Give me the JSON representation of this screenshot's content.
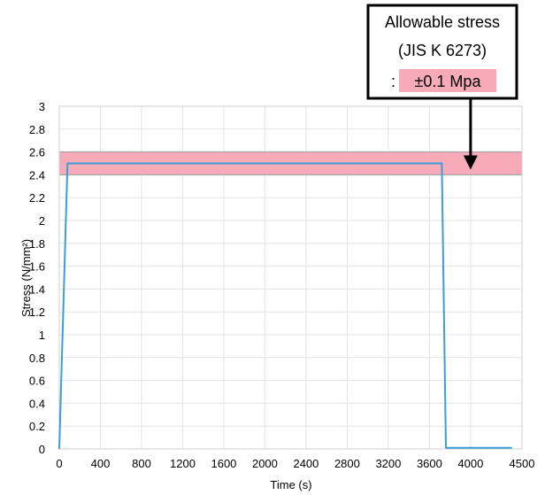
{
  "chart_data": {
    "type": "line",
    "xlabel": "Time (s)",
    "ylabel": "Stress (N/mm²)",
    "xlim": [
      0,
      4500
    ],
    "ylim": [
      0,
      3
    ],
    "x_ticks": [
      "0",
      "400",
      "800",
      "1200",
      "1600",
      "2000",
      "2400",
      "2800",
      "3200",
      "3600",
      "4000",
      "4500"
    ],
    "x_tick_values": [
      0,
      400,
      800,
      1200,
      1600,
      2000,
      2400,
      2800,
      3200,
      3600,
      4000,
      4500
    ],
    "y_ticks": [
      "0",
      "0.2",
      "0.4",
      "0.6",
      "0.8",
      "1",
      "1.2",
      "1.4",
      "1.6",
      "1.8",
      "2",
      "2.2",
      "2.4",
      "2.6",
      "2.8",
      "3"
    ],
    "y_tick_values": [
      0,
      0.2,
      0.4,
      0.6,
      0.8,
      1,
      1.2,
      1.4,
      1.6,
      1.8,
      2,
      2.2,
      2.4,
      2.6,
      2.8,
      3
    ],
    "grid": true,
    "series": [
      {
        "color": "#3a9fd8",
        "points": [
          [
            0,
            0
          ],
          [
            80,
            2.5
          ],
          [
            3720,
            2.5
          ],
          [
            3760,
            0.01
          ],
          [
            4400,
            0.01
          ]
        ]
      }
    ],
    "band": {
      "y0": 2.4,
      "y1": 2.6,
      "color": "#f7aab8"
    },
    "annotation": {
      "lines": [
        "Allowable stress",
        "(JIS K 6273)"
      ],
      "prefix": ":",
      "highlight": "±0.1 Mpa",
      "highlight_color": "#f7aab8",
      "arrow_x": 4000,
      "arrow_target_y": 2.5
    },
    "colors": {
      "grid": "#e3e3e3",
      "axis": "#cfcfcf",
      "band_edge": "#9a9a9a"
    }
  }
}
